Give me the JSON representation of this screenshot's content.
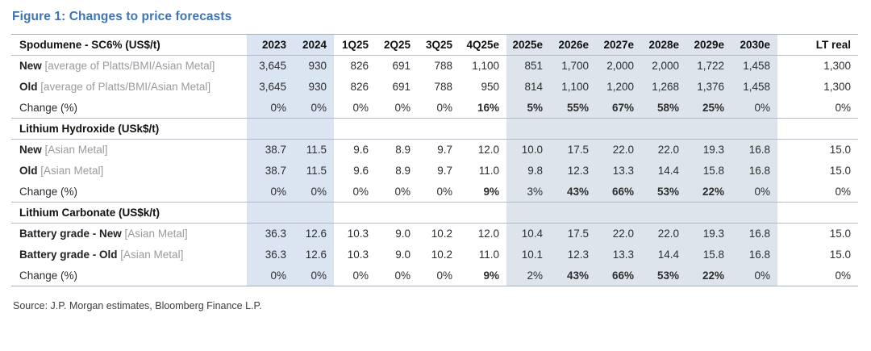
{
  "figure": {
    "title": "Figure 1: Changes to price forecasts",
    "source": "Source: J.P. Morgan estimates, Bloomberg Finance L.P."
  },
  "colors": {
    "title_blue": "#3E74B8",
    "band_hist": "#DBE5F1",
    "band_fcst": "#DDE4EC",
    "green": "#2FA263",
    "gray_pct": "#7F7F7F",
    "note_gray": "#9B9B9B"
  },
  "table": {
    "header": [
      "Spodumene - SC6% (US$/t)",
      "2023",
      "2024",
      "1Q25",
      "2Q25",
      "3Q25",
      "4Q25e",
      "2025e",
      "2026e",
      "2027e",
      "2028e",
      "2029e",
      "2030e",
      "LT real"
    ],
    "band1_cols": [
      0,
      1
    ],
    "band2_cols": [
      6,
      7,
      8,
      9,
      10,
      11
    ],
    "rows": [
      {
        "type": "data",
        "label": "New",
        "note": "[average of Platts/BMI/Asian Metal]",
        "values": [
          "3,645",
          "930",
          "826",
          "691",
          "788",
          "1,100",
          "851",
          "1,700",
          "2,000",
          "2,000",
          "1,722",
          "1,458",
          "1,300"
        ]
      },
      {
        "type": "data",
        "label": "Old",
        "note": "[average of Platts/BMI/Asian Metal]",
        "values": [
          "3,645",
          "930",
          "826",
          "691",
          "788",
          "950",
          "814",
          "1,100",
          "1,200",
          "1,268",
          "1,376",
          "1,458",
          "1,300"
        ]
      },
      {
        "type": "change",
        "label": "Change (%)",
        "values": [
          "0%",
          "0%",
          "0%",
          "0%",
          "0%",
          "16%",
          "5%",
          "55%",
          "67%",
          "58%",
          "25%",
          "0%",
          "0%"
        ],
        "green": [
          false,
          false,
          false,
          false,
          false,
          true,
          true,
          true,
          true,
          true,
          true,
          false,
          false
        ]
      },
      {
        "type": "section",
        "label": "Lithium Hydroxide (USk$/t)"
      },
      {
        "type": "data",
        "label": "New",
        "note": "[Asian Metal]",
        "values": [
          "38.7",
          "11.5",
          "9.6",
          "8.9",
          "9.7",
          "12.0",
          "10.0",
          "17.5",
          "22.0",
          "22.0",
          "19.3",
          "16.8",
          "15.0"
        ]
      },
      {
        "type": "data",
        "label": "Old",
        "note": "[Asian Metal]",
        "values": [
          "38.7",
          "11.5",
          "9.6",
          "8.9",
          "9.7",
          "11.0",
          "9.8",
          "12.3",
          "13.3",
          "14.4",
          "15.8",
          "16.8",
          "15.0"
        ]
      },
      {
        "type": "change",
        "label": "Change (%)",
        "values": [
          "0%",
          "0%",
          "0%",
          "0%",
          "0%",
          "9%",
          "3%",
          "43%",
          "66%",
          "53%",
          "22%",
          "0%",
          "0%"
        ],
        "green": [
          false,
          false,
          false,
          false,
          false,
          true,
          false,
          true,
          true,
          true,
          true,
          false,
          false
        ]
      },
      {
        "type": "section",
        "label": "Lithium Carbonate (US$k/t)"
      },
      {
        "type": "data",
        "label": "Battery grade - New",
        "note": "[Asian Metal]",
        "values": [
          "36.3",
          "12.6",
          "10.3",
          "9.0",
          "10.2",
          "12.0",
          "10.4",
          "17.5",
          "22.0",
          "22.0",
          "19.3",
          "16.8",
          "15.0"
        ]
      },
      {
        "type": "data",
        "label": "Battery grade - Old",
        "note": "[Asian Metal]",
        "values": [
          "36.3",
          "12.6",
          "10.3",
          "9.0",
          "10.2",
          "11.0",
          "10.1",
          "12.3",
          "13.3",
          "14.4",
          "15.8",
          "16.8",
          "15.0"
        ]
      },
      {
        "type": "change",
        "label": "Change (%)",
        "values": [
          "0%",
          "0%",
          "0%",
          "0%",
          "0%",
          "9%",
          "2%",
          "43%",
          "66%",
          "53%",
          "22%",
          "0%",
          "0%"
        ],
        "green": [
          false,
          false,
          false,
          false,
          false,
          true,
          false,
          true,
          true,
          true,
          true,
          false,
          false
        ]
      }
    ]
  }
}
